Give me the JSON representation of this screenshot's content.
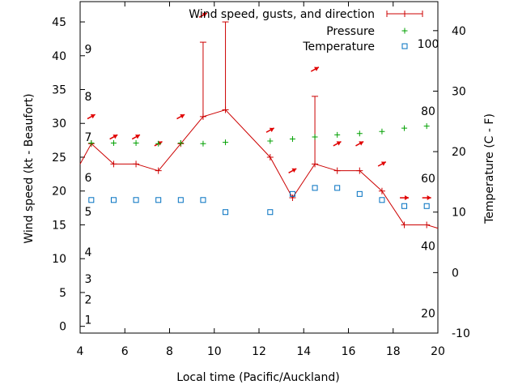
{
  "chart_data": {
    "type": "line",
    "title": "",
    "xlabel": "Local time (Pacific/Auckland)",
    "ylabel_left": "Wind speed (kt - Beaufort)",
    "ylabel_right": "Temperature (C - F)",
    "xlim": [
      4,
      20
    ],
    "ylim_left": [
      -1,
      48
    ],
    "ylim_right": [
      -10,
      44.8
    ],
    "x_ticks": [
      4,
      6,
      8,
      10,
      12,
      14,
      16,
      18,
      20
    ],
    "y_left_ticks": [
      0,
      5,
      10,
      15,
      20,
      25,
      30,
      35,
      40,
      45
    ],
    "y_right_ticks": [
      -10,
      0,
      10,
      20,
      30,
      40
    ],
    "beaufort_labels": [
      {
        "text": "1",
        "kt": 1
      },
      {
        "text": "2",
        "kt": 4
      },
      {
        "text": "3",
        "kt": 7
      },
      {
        "text": "4",
        "kt": 11
      },
      {
        "text": "5",
        "kt": 17
      },
      {
        "text": "6",
        "kt": 22
      },
      {
        "text": "7",
        "kt": 28
      },
      {
        "text": "8",
        "kt": 34
      },
      {
        "text": "9",
        "kt": 41
      }
    ],
    "fahrenheit_labels": [
      {
        "text": "20",
        "c": -6.7
      },
      {
        "text": "40",
        "c": 4.4
      },
      {
        "text": "60",
        "c": 15.6
      },
      {
        "text": "80",
        "c": 26.7
      },
      {
        "text": "100",
        "c": 37.8
      }
    ],
    "legend_position": "top-right",
    "series": [
      {
        "name": "Wind speed, gusts, and direction",
        "color": "#cc0000",
        "x": [
          4,
          4.5,
          5.5,
          6.5,
          7.5,
          8.5,
          9.5,
          10.5,
          12.5,
          13.5,
          14.5,
          15.5,
          16.5,
          17.5,
          18.5,
          19.5,
          20
        ],
        "y": [
          24,
          27,
          24,
          24,
          23,
          27,
          31,
          32,
          25,
          19,
          24,
          23,
          23,
          20,
          15,
          15,
          14.5
        ],
        "gusts": [
          null,
          null,
          null,
          null,
          null,
          null,
          42,
          45,
          null,
          null,
          34,
          null,
          null,
          null,
          null,
          null,
          null
        ],
        "direction_arrows": [
          {
            "x": 4.5,
            "wind": 31,
            "dir": "ne"
          },
          {
            "x": 5.5,
            "wind": 28,
            "dir": "ne"
          },
          {
            "x": 6.5,
            "wind": 28,
            "dir": "ne"
          },
          {
            "x": 7.5,
            "wind": 27,
            "dir": "ne"
          },
          {
            "x": 8.5,
            "wind": 31,
            "dir": "ne"
          },
          {
            "x": 9.5,
            "wind": 46,
            "dir": "ne"
          },
          {
            "x": 12.5,
            "wind": 29,
            "dir": "ne"
          },
          {
            "x": 13.5,
            "wind": 23,
            "dir": "ne"
          },
          {
            "x": 14.5,
            "wind": 38,
            "dir": "ne"
          },
          {
            "x": 15.5,
            "wind": 27,
            "dir": "ne"
          },
          {
            "x": 16.5,
            "wind": 27,
            "dir": "ne"
          },
          {
            "x": 17.5,
            "wind": 24,
            "dir": "ne"
          },
          {
            "x": 18.5,
            "wind": 19,
            "dir": "e"
          },
          {
            "x": 19.5,
            "wind": 19,
            "dir": "e"
          }
        ]
      },
      {
        "name": "Pressure",
        "color": "#00a000",
        "marker": "plus",
        "x": [
          4.5,
          5.5,
          6.5,
          7.5,
          8.5,
          9.5,
          10.5,
          12.5,
          13.5,
          14.5,
          15.5,
          16.5,
          17.5,
          18.5,
          19.5
        ],
        "y": [
          27.1,
          27.1,
          27.1,
          27.0,
          27.1,
          27.0,
          27.2,
          27.4,
          27.7,
          28.0,
          28.3,
          28.5,
          28.8,
          29.3,
          29.6
        ]
      },
      {
        "name": "Temperature",
        "color": "#0070c0",
        "marker": "square",
        "axis": "right",
        "x": [
          4.5,
          5.5,
          6.5,
          7.5,
          8.5,
          9.5,
          10.5,
          12.5,
          13.5,
          14.5,
          15.5,
          16.5,
          17.5,
          18.5,
          19.5
        ],
        "y": [
          12,
          12,
          12,
          12,
          12,
          12,
          10,
          10,
          13,
          14,
          14,
          13,
          12,
          11,
          11
        ]
      }
    ]
  }
}
